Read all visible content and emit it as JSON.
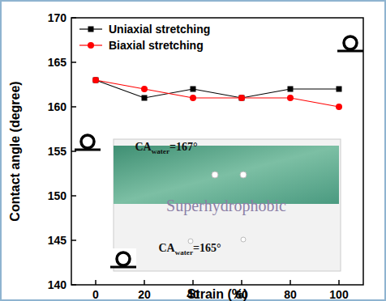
{
  "chart_data": {
    "type": "line",
    "x_label": "Strain (%)",
    "y_label": "Contact angle (degree)",
    "x": [
      0,
      20,
      40,
      60,
      80,
      100
    ],
    "series": [
      {
        "name": "Uniaxial stretching",
        "color": "#000000",
        "marker": "square",
        "line_style": "solid",
        "values": [
          163,
          161,
          162,
          161,
          162,
          162
        ]
      },
      {
        "name": "Biaxial stretching",
        "color": "#ff0000",
        "marker": "circle",
        "line_style": "solid",
        "values": [
          163,
          162,
          161,
          161,
          161,
          160
        ]
      }
    ],
    "xlim": [
      -10,
      110
    ],
    "xticks": [
      0,
      20,
      40,
      60,
      80,
      100
    ],
    "ylim": [
      140,
      170
    ],
    "yticks": [
      140,
      145,
      150,
      155,
      160,
      165,
      170
    ],
    "grid": false,
    "legend": "top-left",
    "annotations": [
      {
        "base": "CA",
        "subscript": "water",
        "rest": "=167°"
      },
      {
        "base": "Superhydrophobic"
      },
      {
        "base": "CA",
        "subscript": "water",
        "rest": "=165°"
      }
    ]
  }
}
